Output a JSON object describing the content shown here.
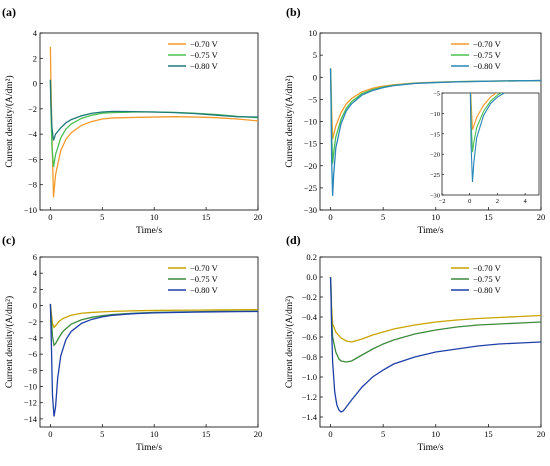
{
  "chart_data": [
    {
      "panel_label": "(a)",
      "type": "line",
      "xlabel": "Time/s",
      "ylabel": "Current density/(A/dm²)",
      "xlim": [
        -1,
        20
      ],
      "ylim": [
        -10,
        4
      ],
      "xticks": [
        0,
        5,
        10,
        15,
        20
      ],
      "yticks": [
        4,
        2,
        0,
        -2,
        -4,
        -6,
        -8,
        -10
      ],
      "legend_position": "upper-right",
      "series": [
        {
          "name": "-0.70 V",
          "color": "#f39a2b",
          "x": [
            0,
            0.05,
            0.15,
            0.3,
            0.5,
            1,
            1.5,
            2,
            3,
            4,
            5,
            6,
            8,
            10,
            12,
            14,
            16,
            18,
            20
          ],
          "y": [
            2.9,
            0.3,
            -4.0,
            -9.0,
            -7.2,
            -5.3,
            -4.4,
            -3.9,
            -3.3,
            -3.0,
            -2.8,
            -2.72,
            -2.68,
            -2.65,
            -2.62,
            -2.65,
            -2.7,
            -2.8,
            -2.95
          ]
        },
        {
          "name": "-0.75 V",
          "color": "#4cbf50",
          "x": [
            0,
            0.05,
            0.15,
            0.3,
            0.5,
            1,
            1.5,
            2,
            3,
            4,
            5,
            6,
            8,
            10,
            12,
            14,
            16,
            18,
            20
          ],
          "y": [
            0.3,
            -2.0,
            -5.0,
            -6.6,
            -5.6,
            -4.3,
            -3.6,
            -3.2,
            -2.75,
            -2.5,
            -2.35,
            -2.3,
            -2.25,
            -2.25,
            -2.28,
            -2.35,
            -2.45,
            -2.6,
            -2.7
          ]
        },
        {
          "name": "-0.80 V",
          "color": "#1e7a7a",
          "x": [
            0,
            0.05,
            0.15,
            0.3,
            0.5,
            1,
            1.5,
            2,
            3,
            4,
            5,
            6,
            8,
            10,
            12,
            14,
            16,
            18,
            20
          ],
          "y": [
            0.3,
            -1.5,
            -3.5,
            -4.5,
            -4.0,
            -3.5,
            -3.1,
            -2.85,
            -2.55,
            -2.35,
            -2.25,
            -2.2,
            -2.22,
            -2.25,
            -2.3,
            -2.38,
            -2.5,
            -2.62,
            -2.65
          ]
        }
      ]
    },
    {
      "panel_label": "(b)",
      "type": "line",
      "xlabel": "Time/s",
      "ylabel": "Current density/(A/dm²)",
      "xlim": [
        -1,
        20
      ],
      "ylim": [
        -30,
        10
      ],
      "xticks": [
        0,
        5,
        10,
        15,
        20
      ],
      "yticks": [
        10,
        5,
        0,
        -5,
        -10,
        -15,
        -20,
        -25,
        -30
      ],
      "legend_position": "upper-right",
      "series": [
        {
          "name": "-0.70 V",
          "color": "#f39a2b",
          "x": [
            0,
            0.05,
            0.1,
            0.2,
            0.3,
            0.5,
            1,
            1.5,
            2,
            3,
            4,
            5,
            6,
            8,
            10,
            12,
            14,
            16,
            18,
            20
          ],
          "y": [
            2.0,
            -1.0,
            -7.0,
            -14.0,
            -13.0,
            -11.0,
            -8.0,
            -6.0,
            -4.8,
            -3.3,
            -2.5,
            -2.0,
            -1.7,
            -1.3,
            -1.1,
            -1.0,
            -0.9,
            -0.85,
            -0.8,
            -0.75
          ]
        },
        {
          "name": "-0.75 V",
          "color": "#4cbf50",
          "x": [
            0,
            0.05,
            0.1,
            0.2,
            0.3,
            0.5,
            1,
            1.5,
            2,
            3,
            4,
            5,
            6,
            8,
            10,
            12,
            14,
            16,
            18,
            20
          ],
          "y": [
            2.0,
            -3.0,
            -12.0,
            -19.5,
            -17.0,
            -13.5,
            -9.5,
            -7.0,
            -5.5,
            -3.7,
            -2.8,
            -2.2,
            -1.8,
            -1.35,
            -1.15,
            -1.0,
            -0.9,
            -0.85,
            -0.8,
            -0.75
          ]
        },
        {
          "name": "-0.80 V",
          "color": "#2a86b8",
          "x": [
            0,
            0.05,
            0.1,
            0.2,
            0.3,
            0.5,
            1,
            1.5,
            2,
            3,
            4,
            5,
            6,
            8,
            10,
            12,
            14,
            16,
            18,
            20
          ],
          "y": [
            2.0,
            -6.0,
            -18.0,
            -26.8,
            -22.0,
            -16.0,
            -10.5,
            -7.6,
            -6.0,
            -4.0,
            -3.0,
            -2.35,
            -1.9,
            -1.4,
            -1.2,
            -1.05,
            -0.95,
            -0.85,
            -0.8,
            -0.75
          ]
        }
      ],
      "inset": {
        "xlim": [
          -2,
          5
        ],
        "ylim": [
          -30,
          -5
        ],
        "xticks": [
          -2,
          0,
          2,
          4
        ],
        "yticks": [
          -5,
          -10,
          -15,
          -20,
          -25,
          -30
        ]
      }
    },
    {
      "panel_label": "(c)",
      "type": "line",
      "xlabel": "Time/s",
      "ylabel": "Current density/(A/dm²)",
      "xlim": [
        -1,
        20
      ],
      "ylim": [
        -15,
        6
      ],
      "xticks": [
        0,
        5,
        10,
        15,
        20
      ],
      "yticks": [
        6,
        4,
        2,
        0,
        -2,
        -4,
        -6,
        -8,
        -10,
        -12,
        -14
      ],
      "legend_position": "upper-right",
      "series": [
        {
          "name": "-0.70 V",
          "color": "#c9a400",
          "x": [
            0,
            0.1,
            0.2,
            0.35,
            0.5,
            0.8,
            1.2,
            2,
            3,
            4,
            5,
            6,
            8,
            10,
            12,
            14,
            16,
            18,
            20
          ],
          "y": [
            0.2,
            -1.0,
            -2.2,
            -2.7,
            -2.5,
            -2.0,
            -1.6,
            -1.2,
            -0.95,
            -0.85,
            -0.78,
            -0.72,
            -0.65,
            -0.6,
            -0.58,
            -0.56,
            -0.54,
            -0.52,
            -0.5
          ]
        },
        {
          "name": "-0.75 V",
          "color": "#3c8a3c",
          "x": [
            0,
            0.1,
            0.2,
            0.35,
            0.5,
            0.8,
            1.2,
            2,
            3,
            4,
            5,
            6,
            8,
            10,
            12,
            14,
            16,
            18,
            20
          ],
          "y": [
            0.2,
            -1.8,
            -3.8,
            -4.9,
            -4.7,
            -4.0,
            -3.2,
            -2.3,
            -1.75,
            -1.45,
            -1.25,
            -1.1,
            -0.95,
            -0.85,
            -0.8,
            -0.76,
            -0.72,
            -0.7,
            -0.68
          ]
        },
        {
          "name": "-0.80 V",
          "color": "#1f3fa8",
          "x": [
            0,
            0.1,
            0.2,
            0.35,
            0.5,
            0.7,
            1.0,
            1.5,
            2,
            3,
            4,
            5,
            6,
            8,
            10,
            12,
            14,
            16,
            18,
            20
          ],
          "y": [
            0.2,
            -5.0,
            -11.0,
            -13.7,
            -12.5,
            -9.0,
            -6.2,
            -4.2,
            -3.2,
            -2.2,
            -1.7,
            -1.4,
            -1.2,
            -1.0,
            -0.9,
            -0.85,
            -0.8,
            -0.77,
            -0.75,
            -0.73
          ]
        }
      ]
    },
    {
      "panel_label": "(d)",
      "type": "line",
      "xlabel": "Time/s",
      "ylabel": "Current density/(A/dm²)",
      "xlim": [
        -1,
        20
      ],
      "ylim": [
        -1.5,
        0.2
      ],
      "xticks": [
        0,
        5,
        10,
        15,
        20
      ],
      "yticks": [
        0.2,
        0.0,
        -0.2,
        -0.4,
        -0.6,
        -0.8,
        -1.0,
        -1.2,
        -1.4
      ],
      "legend_position": "upper-right",
      "series": [
        {
          "name": "-0.70 V",
          "color": "#c9a400",
          "x": [
            0,
            0.05,
            0.1,
            0.2,
            0.5,
            1,
            1.5,
            2,
            3,
            4,
            5,
            6,
            8,
            10,
            12,
            14,
            16,
            18,
            20
          ],
          "y": [
            0.0,
            -0.1,
            -0.3,
            -0.47,
            -0.55,
            -0.61,
            -0.64,
            -0.65,
            -0.62,
            -0.58,
            -0.55,
            -0.52,
            -0.48,
            -0.45,
            -0.43,
            -0.415,
            -0.405,
            -0.395,
            -0.385
          ]
        },
        {
          "name": "-0.75 V",
          "color": "#3c8a3c",
          "x": [
            0,
            0.05,
            0.1,
            0.2,
            0.5,
            0.8,
            1,
            1.5,
            2,
            3,
            4,
            5,
            6,
            8,
            10,
            12,
            14,
            16,
            18,
            20
          ],
          "y": [
            0.0,
            -0.15,
            -0.4,
            -0.6,
            -0.75,
            -0.82,
            -0.84,
            -0.85,
            -0.84,
            -0.78,
            -0.72,
            -0.67,
            -0.63,
            -0.57,
            -0.53,
            -0.5,
            -0.48,
            -0.47,
            -0.46,
            -0.45
          ]
        },
        {
          "name": "-0.80 V",
          "color": "#1f3fa8",
          "x": [
            0,
            0.05,
            0.1,
            0.2,
            0.4,
            0.6,
            0.8,
            1.0,
            1.2,
            1.5,
            2,
            3,
            4,
            5,
            6,
            8,
            10,
            12,
            14,
            16,
            18,
            20
          ],
          "y": [
            0.0,
            -0.2,
            -0.5,
            -0.85,
            -1.15,
            -1.28,
            -1.33,
            -1.35,
            -1.34,
            -1.3,
            -1.23,
            -1.1,
            -1.0,
            -0.93,
            -0.87,
            -0.8,
            -0.75,
            -0.72,
            -0.69,
            -0.67,
            -0.66,
            -0.65
          ]
        }
      ]
    }
  ]
}
